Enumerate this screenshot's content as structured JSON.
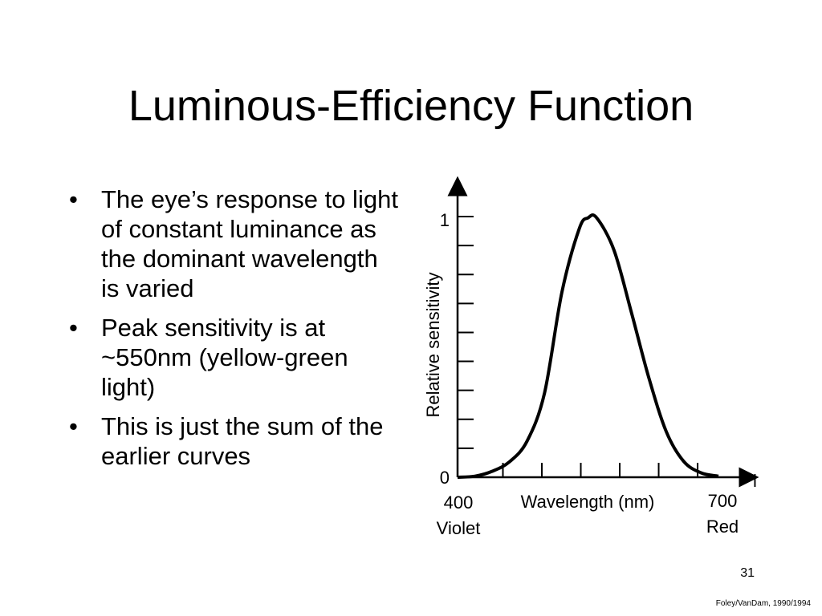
{
  "slide": {
    "title": "Luminous-Efficiency Function",
    "bullets": [
      "The eye’s response to light of constant luminance as the dominant wavelength is varied",
      "Peak sensitivity is at ~550nm (yellow-green light)",
      "This is just the sum of the earlier curves"
    ],
    "bullet_marker": "•",
    "slide_number": "31",
    "credit": "Foley/VanDam, 1990/1994"
  },
  "chart_data": {
    "type": "line",
    "title": "",
    "xlabel": "Wavelength (nm)",
    "ylabel": "Relative sensitivity",
    "x_arrow_label": "l",
    "xlim": [
      400,
      700
    ],
    "ylim": [
      0,
      1
    ],
    "y_tick_labels": [
      "1",
      "0"
    ],
    "x_tick_labels": [
      {
        "value": "400",
        "caption": "Violet"
      },
      {
        "value": "700",
        "caption": "Red"
      }
    ],
    "minor_x_ticks": 6,
    "minor_y_ticks": 8,
    "grid": false,
    "series": [
      {
        "x": [
          400,
          420,
          440,
          460,
          480,
          500,
          520,
          540,
          550,
          560,
          580,
          600,
          620,
          640,
          660,
          680,
          700
        ],
        "values": [
          0.0,
          0.004,
          0.023,
          0.06,
          0.139,
          0.323,
          0.71,
          0.954,
          0.995,
          0.995,
          0.87,
          0.631,
          0.381,
          0.175,
          0.061,
          0.017,
          0.004
        ]
      }
    ],
    "line_color": "#000000"
  }
}
